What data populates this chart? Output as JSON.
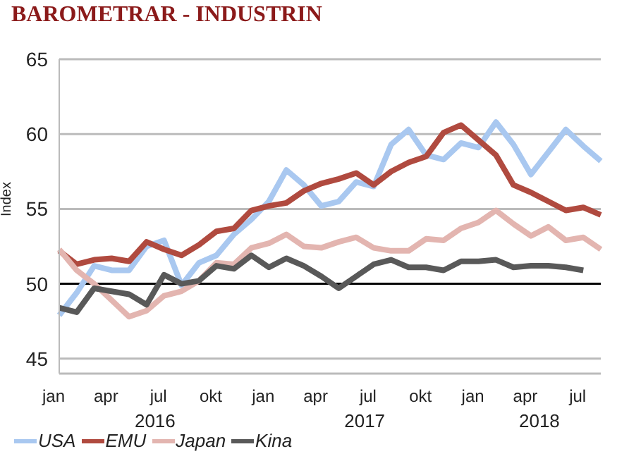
{
  "chart_data": {
    "type": "line",
    "title": "BAROMETRAR - INDUSTRIN",
    "ylabel": "Index",
    "categories": [
      "jan",
      null,
      null,
      "apr",
      null,
      null,
      "jul",
      null,
      null,
      "okt",
      null,
      null,
      "jan",
      null,
      null,
      "apr",
      null,
      null,
      "jul",
      null,
      null,
      "okt",
      null,
      null,
      "jan",
      null,
      null,
      "apr",
      null,
      null,
      "jul",
      null
    ],
    "annotations": [
      "2016",
      "2017",
      "2018"
    ],
    "series": [
      {
        "name": "USA",
        "color": "#a9c8f0",
        "values": [
          47.9,
          49.4,
          51.2,
          50.9,
          50.9,
          52.5,
          52.9,
          49.9,
          51.4,
          51.9,
          53.3,
          54.3,
          55.5,
          57.6,
          56.6,
          55.2,
          55.5,
          56.8,
          56.5,
          59.3,
          60.3,
          58.6,
          58.3,
          59.4,
          59.1,
          60.8,
          59.3,
          57.3,
          58.8,
          60.3,
          59.2,
          58.2
        ]
      },
      {
        "name": "EMU",
        "color": "#b04a3f",
        "values": [
          52.2,
          51.3,
          51.6,
          51.7,
          51.5,
          52.8,
          52.3,
          51.9,
          52.6,
          53.5,
          53.7,
          54.9,
          55.2,
          55.4,
          56.2,
          56.7,
          57.0,
          57.4,
          56.6,
          57.5,
          58.1,
          58.5,
          60.1,
          60.6,
          59.6,
          58.6,
          56.6,
          56.1,
          55.5,
          54.9,
          55.1,
          54.6
        ]
      },
      {
        "name": "Japan",
        "color": "#e3b5b0",
        "values": [
          52.3,
          50.9,
          50.0,
          48.9,
          47.8,
          48.2,
          49.2,
          49.5,
          50.2,
          51.4,
          51.3,
          52.4,
          52.7,
          53.3,
          52.5,
          52.4,
          52.8,
          53.1,
          52.4,
          52.2,
          52.2,
          53.0,
          52.9,
          53.7,
          54.1,
          54.9,
          54.0,
          53.2,
          53.8,
          52.9,
          53.1,
          52.3
        ]
      },
      {
        "name": "Kina",
        "color": "#595959",
        "values": [
          48.4,
          48.1,
          49.7,
          49.5,
          49.3,
          48.6,
          50.6,
          50.0,
          50.2,
          51.2,
          51.0,
          51.9,
          51.1,
          51.7,
          51.2,
          50.5,
          49.7,
          50.5,
          51.3,
          51.6,
          51.1,
          51.1,
          50.9,
          51.5,
          51.5,
          51.6,
          51.1,
          51.2,
          51.2,
          51.1,
          50.9,
          null
        ]
      }
    ],
    "ylim": [
      44,
      65
    ],
    "yticks": [
      45,
      50,
      55,
      60,
      65
    ],
    "grid": "y",
    "legend": "bottom left",
    "marker": "none",
    "line_style": "solid",
    "ref_lines": [
      {
        "axis": "y",
        "value": 50,
        "color": "#000000"
      }
    ]
  }
}
